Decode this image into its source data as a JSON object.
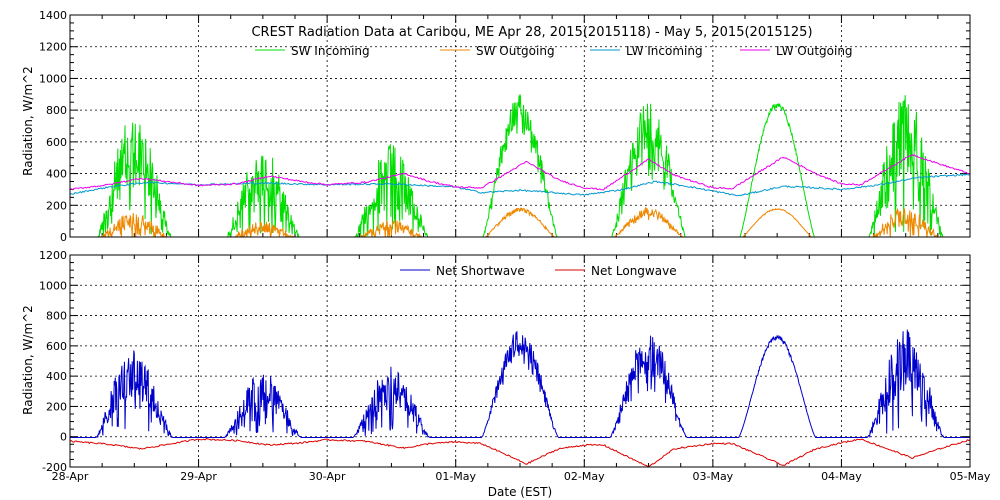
{
  "chart_data": [
    {
      "type": "line",
      "title": "CREST Radiation Data at Caribou, ME   Apr 28, 2015(2015118) - May  5, 2015(2015125)",
      "ylabel": "Radiation, W/m^2",
      "xlabel": "",
      "x_unit": "days since 28-Apr-2015 00:00 EST",
      "xlim": [
        0,
        7
      ],
      "ylim": [
        0,
        1400
      ],
      "yticks": [
        0,
        200,
        400,
        600,
        800,
        1000,
        1200,
        1400
      ],
      "grid": true,
      "legend_position": "top",
      "series": [
        {
          "name": "SW Incoming",
          "color": "#00dd00",
          "peaks": [
            780,
            560,
            590,
            900,
            880,
            850,
            910
          ],
          "jitter": [
            1,
            1,
            1,
            0.35,
            0.6,
            0.05,
            1
          ]
        },
        {
          "name": "SW Outgoing",
          "color": "#ee8800",
          "peaks": [
            160,
            100,
            110,
            185,
            185,
            180,
            190
          ],
          "jitter": [
            1,
            1,
            1,
            0.2,
            0.4,
            0.05,
            1
          ]
        },
        {
          "name": "LW Incoming",
          "color": "#0099cc",
          "points": [
            [
              0,
              270
            ],
            [
              0.3,
              315
            ],
            [
              0.6,
              345
            ],
            [
              1,
              330
            ],
            [
              1.5,
              340
            ],
            [
              2,
              330
            ],
            [
              2.5,
              335
            ],
            [
              3,
              315
            ],
            [
              3.2,
              280
            ],
            [
              3.5,
              295
            ],
            [
              4,
              265
            ],
            [
              4.3,
              300
            ],
            [
              4.55,
              350
            ],
            [
              4.8,
              320
            ],
            [
              5,
              290
            ],
            [
              5.2,
              260
            ],
            [
              5.55,
              320
            ],
            [
              5.8,
              310
            ],
            [
              6,
              300
            ],
            [
              6.3,
              330
            ],
            [
              6.6,
              375
            ],
            [
              7,
              395
            ]
          ]
        },
        {
          "name": "LW Outgoing",
          "color": "#ee00ee",
          "points": [
            [
              0,
              300
            ],
            [
              0.3,
              330
            ],
            [
              0.55,
              370
            ],
            [
              0.8,
              345
            ],
            [
              1,
              325
            ],
            [
              1.3,
              335
            ],
            [
              1.55,
              385
            ],
            [
              1.8,
              350
            ],
            [
              2,
              330
            ],
            [
              2.3,
              345
            ],
            [
              2.6,
              400
            ],
            [
              2.8,
              350
            ],
            [
              3,
              315
            ],
            [
              3.2,
              310
            ],
            [
              3.55,
              475
            ],
            [
              3.8,
              360
            ],
            [
              4,
              310
            ],
            [
              4.15,
              300
            ],
            [
              4.5,
              490
            ],
            [
              4.7,
              390
            ],
            [
              5,
              310
            ],
            [
              5.15,
              305
            ],
            [
              5.55,
              505
            ],
            [
              5.8,
              400
            ],
            [
              6,
              335
            ],
            [
              6.15,
              330
            ],
            [
              6.55,
              520
            ],
            [
              6.8,
              450
            ],
            [
              7,
              400
            ]
          ]
        }
      ]
    },
    {
      "type": "line",
      "title": "",
      "ylabel": "Radiation, W/m^2",
      "xlabel": "Date (EST)",
      "x_unit": "days since 28-Apr-2015 00:00 EST",
      "xlim": [
        0,
        7
      ],
      "ylim": [
        -200,
        1200
      ],
      "yticks": [
        -200,
        0,
        200,
        400,
        600,
        800,
        1000,
        1200
      ],
      "x_tick_labels": [
        "28-Apr",
        "29-Apr",
        "30-Apr",
        "01-May",
        "02-May",
        "03-May",
        "04-May",
        "05-May"
      ],
      "grid": true,
      "legend_position": "top",
      "series": [
        {
          "name": "Net Shortwave",
          "color": "#0000cc",
          "peaks": [
            610,
            430,
            470,
            710,
            700,
            670,
            710
          ],
          "jitter": [
            1,
            1,
            1,
            0.35,
            0.6,
            0.05,
            1
          ]
        },
        {
          "name": "Net Longwave",
          "color": "#dd0000",
          "points": [
            [
              0,
              -30
            ],
            [
              0.3,
              -50
            ],
            [
              0.55,
              -80
            ],
            [
              0.8,
              -45
            ],
            [
              1,
              -15
            ],
            [
              1.3,
              -25
            ],
            [
              1.55,
              -55
            ],
            [
              1.8,
              -40
            ],
            [
              2,
              -20
            ],
            [
              2.3,
              -30
            ],
            [
              2.6,
              -75
            ],
            [
              2.8,
              -45
            ],
            [
              3,
              -35
            ],
            [
              3.2,
              -45
            ],
            [
              3.55,
              -180
            ],
            [
              3.8,
              -80
            ],
            [
              4,
              -55
            ],
            [
              4.15,
              -55
            ],
            [
              4.5,
              -200
            ],
            [
              4.7,
              -80
            ],
            [
              5,
              -45
            ],
            [
              5.15,
              -45
            ],
            [
              5.55,
              -190
            ],
            [
              5.8,
              -80
            ],
            [
              6,
              -40
            ],
            [
              6.15,
              -15
            ],
            [
              6.55,
              -140
            ],
            [
              6.8,
              -70
            ],
            [
              7,
              -20
            ]
          ]
        }
      ]
    }
  ]
}
